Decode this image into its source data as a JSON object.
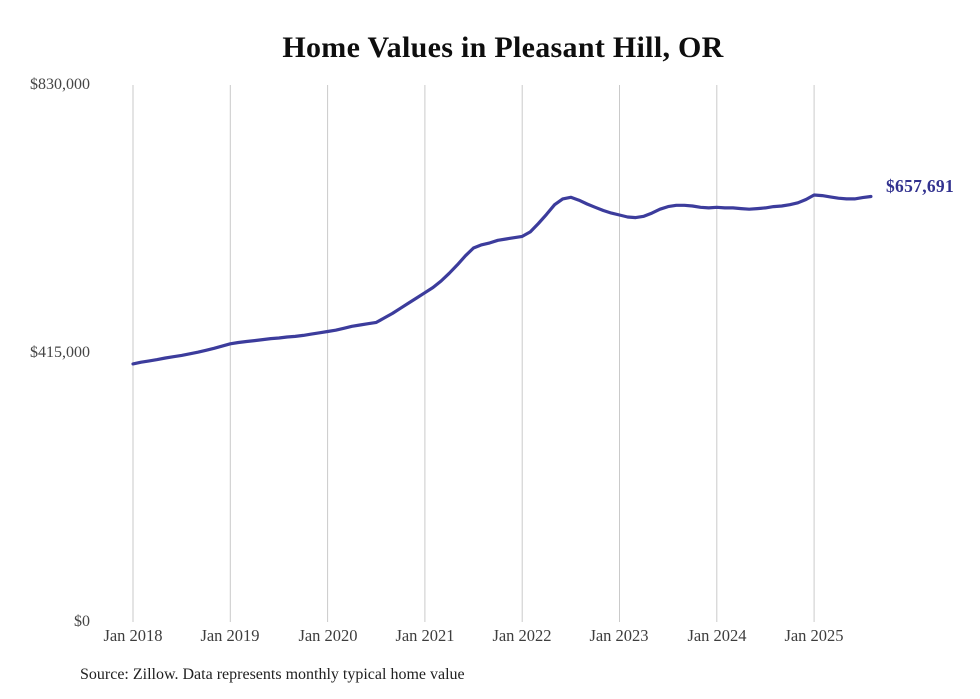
{
  "title": "Home Values in Pleasant Hill, OR",
  "source_note": "Source: Zillow. Data represents monthly typical home value",
  "end_label": "$657,691",
  "colors": {
    "line": "#3c3c9c",
    "end_label": "#32328f",
    "gridline": "#cacaca",
    "axis_text": "#3d3d3d",
    "title_text": "#0e0e0e"
  },
  "y_axis": {
    "tick_labels": [
      "$830,000",
      "$415,000",
      "$0"
    ],
    "tick_values": [
      830000,
      415000,
      0
    ]
  },
  "x_axis": {
    "tick_labels": [
      "Jan 2018",
      "Jan 2019",
      "Jan 2020",
      "Jan 2021",
      "Jan 2022",
      "Jan 2023",
      "Jan 2024",
      "Jan 2025"
    ]
  },
  "chart_data": {
    "type": "line",
    "title": "Home Values in Pleasant Hill, OR",
    "series_name": "Monthly typical home value",
    "line_color": "#3c3c9c",
    "grid": "vertical-only",
    "legend": "none",
    "ylim": [
      0,
      830000
    ],
    "y_ticks": [
      0,
      415000,
      830000
    ],
    "x_tick_labels": [
      "Jan 2018",
      "Jan 2019",
      "Jan 2020",
      "Jan 2021",
      "Jan 2022",
      "Jan 2023",
      "Jan 2024",
      "Jan 2025"
    ],
    "final_value": 657691,
    "final_value_label": "$657,691",
    "x": [
      "2018-01",
      "2018-02",
      "2018-03",
      "2018-04",
      "2018-05",
      "2018-06",
      "2018-07",
      "2018-08",
      "2018-09",
      "2018-10",
      "2018-11",
      "2018-12",
      "2019-01",
      "2019-02",
      "2019-03",
      "2019-04",
      "2019-05",
      "2019-06",
      "2019-07",
      "2019-08",
      "2019-09",
      "2019-10",
      "2019-11",
      "2019-12",
      "2020-01",
      "2020-02",
      "2020-03",
      "2020-04",
      "2020-05",
      "2020-06",
      "2020-07",
      "2020-08",
      "2020-09",
      "2020-10",
      "2020-11",
      "2020-12",
      "2021-01",
      "2021-02",
      "2021-03",
      "2021-04",
      "2021-05",
      "2021-06",
      "2021-07",
      "2021-08",
      "2021-09",
      "2021-10",
      "2021-11",
      "2021-12",
      "2022-01",
      "2022-02",
      "2022-03",
      "2022-04",
      "2022-05",
      "2022-06",
      "2022-07",
      "2022-08",
      "2022-09",
      "2022-10",
      "2022-11",
      "2022-12",
      "2023-01",
      "2023-02",
      "2023-03",
      "2023-04",
      "2023-05",
      "2023-06",
      "2023-07",
      "2023-08",
      "2023-09",
      "2023-10",
      "2023-11",
      "2023-12",
      "2024-01",
      "2024-02",
      "2024-03",
      "2024-04",
      "2024-05",
      "2024-06",
      "2024-07",
      "2024-08",
      "2024-09",
      "2024-10",
      "2024-11",
      "2024-12",
      "2025-01",
      "2025-02",
      "2025-03",
      "2025-04",
      "2025-05",
      "2025-06",
      "2025-07",
      "2025-08"
    ],
    "values": [
      399000,
      401500,
      403500,
      405500,
      408000,
      410000,
      412000,
      414500,
      417000,
      420000,
      423000,
      426500,
      430000,
      432000,
      433500,
      435000,
      436500,
      438000,
      439000,
      440500,
      441500,
      443000,
      445000,
      447000,
      449000,
      451000,
      454000,
      457000,
      459000,
      461000,
      463000,
      470000,
      477000,
      485000,
      493000,
      501000,
      509000,
      517000,
      527000,
      539000,
      552000,
      566000,
      578000,
      583000,
      586000,
      590000,
      592000,
      594000,
      596000,
      603000,
      616000,
      630000,
      645000,
      654000,
      656500,
      652000,
      646000,
      641000,
      636000,
      632000,
      629000,
      626000,
      625000,
      627000,
      632000,
      638000,
      642000,
      644000,
      644000,
      643000,
      641000,
      640000,
      641000,
      640000,
      640000,
      639000,
      638000,
      639000,
      640000,
      642000,
      643000,
      645000,
      648000,
      653000,
      660000,
      659000,
      657000,
      655000,
      654000,
      654000,
      656000,
      657691
    ]
  }
}
